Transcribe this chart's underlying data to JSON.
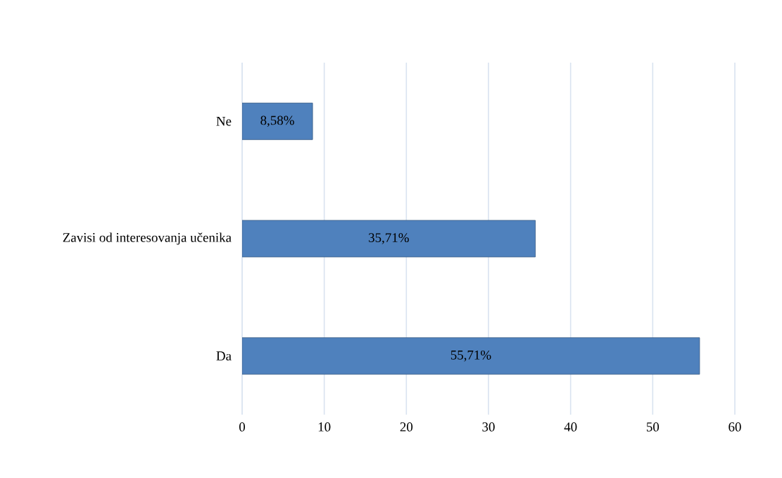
{
  "chart_data": {
    "type": "bar",
    "orientation": "horizontal",
    "categories": [
      "Ne",
      "Zavisi od interesovanja učenika",
      "Da"
    ],
    "values": [
      8.58,
      35.71,
      55.71
    ],
    "value_labels": [
      "8,58%",
      "35,71%",
      "55,71%"
    ],
    "color": "#4f81bd",
    "xlim": [
      0,
      60
    ],
    "xticks": [
      0,
      10,
      20,
      30,
      40,
      50,
      60
    ],
    "grid": "x"
  }
}
